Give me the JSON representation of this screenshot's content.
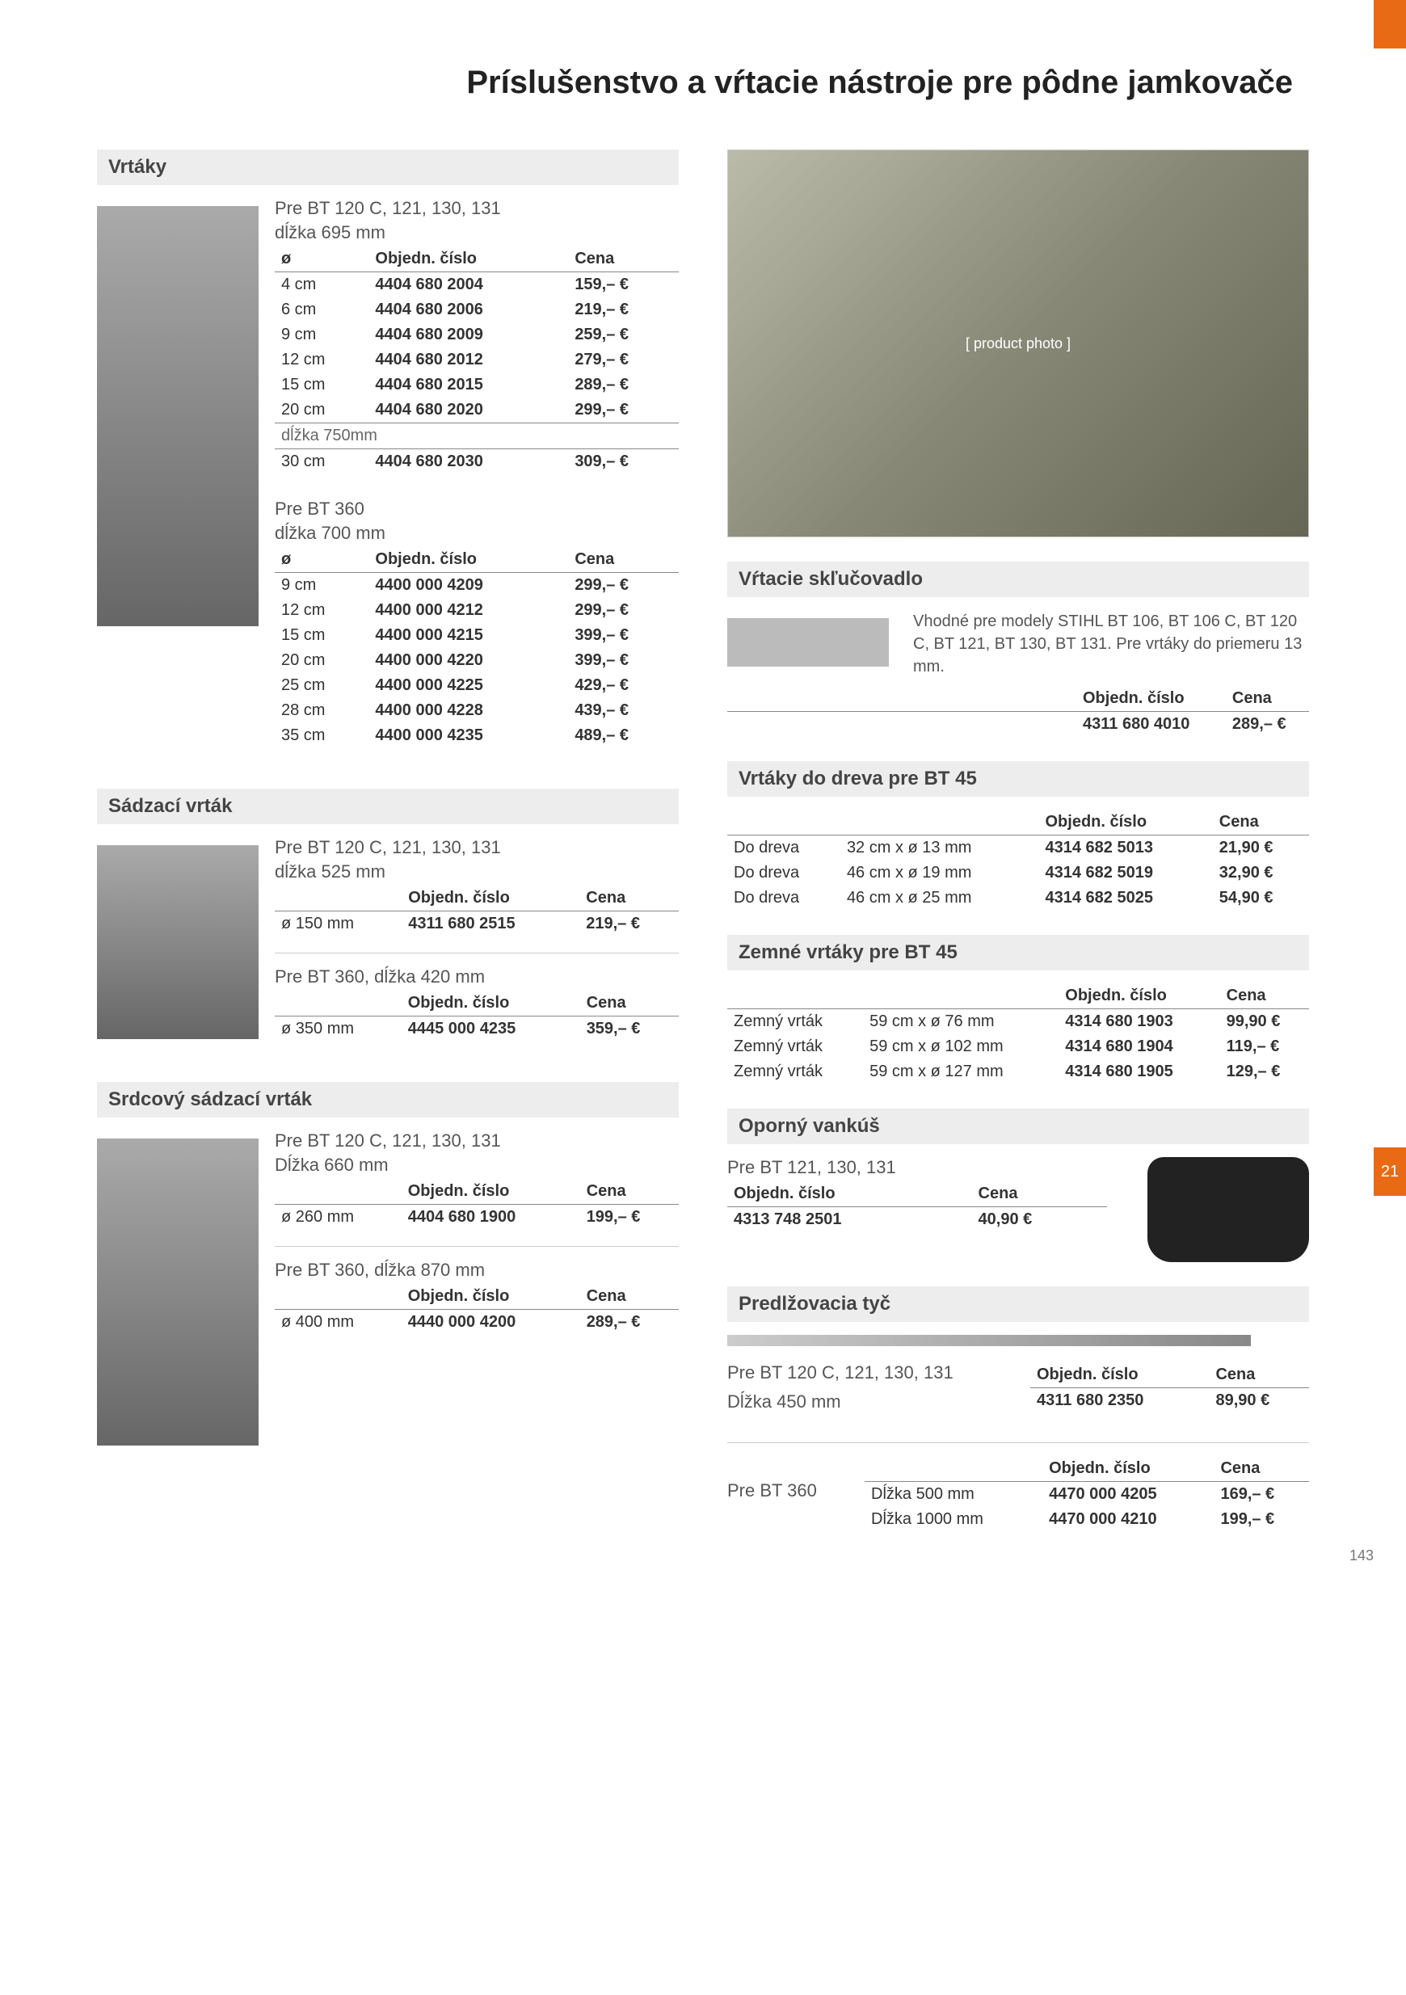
{
  "page": {
    "title": "Príslušenstvo a vŕtacie nástroje pre pôdne jamkovače",
    "side_badge": "21",
    "page_number": "143"
  },
  "labels": {
    "order_no": "Objedn. číslo",
    "price": "Cena",
    "diameter": "ø"
  },
  "vrtaky": {
    "title": "Vrtáky",
    "set1": {
      "header": "Pre BT 120 C, 121, 130, 131",
      "length": "dĺžka 695 mm",
      "rows": [
        {
          "d": "4 cm",
          "num": "4404 680 2004",
          "price": "159,– €"
        },
        {
          "d": "6 cm",
          "num": "4404 680 2006",
          "price": "219,– €"
        },
        {
          "d": "9 cm",
          "num": "4404 680 2009",
          "price": "259,– €"
        },
        {
          "d": "12 cm",
          "num": "4404 680 2012",
          "price": "279,– €"
        },
        {
          "d": "15 cm",
          "num": "4404 680 2015",
          "price": "289,– €"
        },
        {
          "d": "20 cm",
          "num": "4404 680 2020",
          "price": "299,– €"
        }
      ],
      "length2": "dĺžka 750mm",
      "rows2": [
        {
          "d": "30 cm",
          "num": "4404 680 2030",
          "price": "309,– €"
        }
      ]
    },
    "set2": {
      "header": "Pre BT 360",
      "length": "dĺžka 700 mm",
      "rows": [
        {
          "d": "9 cm",
          "num": "4400 000 4209",
          "price": "299,– €"
        },
        {
          "d": "12 cm",
          "num": "4400 000 4212",
          "price": "299,– €"
        },
        {
          "d": "15 cm",
          "num": "4400 000 4215",
          "price": "399,– €"
        },
        {
          "d": "20 cm",
          "num": "4400 000 4220",
          "price": "399,– €"
        },
        {
          "d": "25 cm",
          "num": "4400 000 4225",
          "price": "429,– €"
        },
        {
          "d": "28 cm",
          "num": "4400 000 4228",
          "price": "439,– €"
        },
        {
          "d": "35 cm",
          "num": "4400 000 4235",
          "price": "489,– €"
        }
      ]
    }
  },
  "sklucovadlo": {
    "title": "Vŕtacie skľučovadlo",
    "desc": "Vhodné pre modely STIHL BT 106, BT 106 C, BT 120 C, BT 121, BT 130, BT 131. Pre vrtáky do priemeru 13 mm.",
    "num": "4311 680 4010",
    "price": "289,– €"
  },
  "sadzaci": {
    "title": "Sádzací vrták",
    "set1": {
      "header": "Pre BT 120 C, 121, 130, 131",
      "length": "dĺžka 525 mm",
      "diameter": "ø 150 mm",
      "num": "4311 680 2515",
      "price": "219,– €"
    },
    "set2": {
      "header": "Pre BT 360, dĺžka 420 mm",
      "diameter": "ø 350 mm",
      "num": "4445 000 4235",
      "price": "359,– €"
    }
  },
  "bt45_wood": {
    "title": "Vrtáky do dreva pre BT 45",
    "rows": [
      {
        "name": "Do dreva",
        "size": "32 cm x ø 13 mm",
        "num": "4314 682 5013",
        "price": "21,90 €"
      },
      {
        "name": "Do dreva",
        "size": "46 cm x ø 19 mm",
        "num": "4314 682 5019",
        "price": "32,90 €"
      },
      {
        "name": "Do dreva",
        "size": "46 cm x ø 25 mm",
        "num": "4314 682 5025",
        "price": "54,90 €"
      }
    ]
  },
  "bt45_earth": {
    "title": "Zemné vrtáky pre  BT 45",
    "rows": [
      {
        "name": "Zemný vrták",
        "size": "59 cm x ø 76 mm",
        "num": "4314 680 1903",
        "price": "99,90 €"
      },
      {
        "name": "Zemný vrták",
        "size": "59 cm x ø 102 mm",
        "num": "4314 680 1904",
        "price": "119,– €"
      },
      {
        "name": "Zemný vrták",
        "size": "59 cm x ø 127 mm",
        "num": "4314 680 1905",
        "price": "129,– €"
      }
    ]
  },
  "srdcovy": {
    "title": "Srdcový sádzací vrták",
    "set1": {
      "header": "Pre BT 120 C, 121, 130, 131",
      "length": "Dĺžka 660 mm",
      "diameter": "ø 260 mm",
      "num": "4404 680 1900",
      "price": "199,– €"
    },
    "set2": {
      "header": "Pre BT 360, dĺžka 870 mm",
      "diameter": "ø 400 mm",
      "num": "4440 000 4200",
      "price": "289,– €"
    }
  },
  "cushion": {
    "title": "Oporný vankúš",
    "header": "Pre BT 121, 130, 131",
    "num": "4313 748 2501",
    "price": "40,90 €"
  },
  "rod": {
    "title": "Predlžovacia tyč",
    "set1": {
      "header": "Pre BT 120 C, 121, 130, 131",
      "length": "Dĺžka 450 mm",
      "num": "4311 680 2350",
      "price": "89,90 €"
    },
    "set2": {
      "header": "Pre BT 360",
      "rows": [
        {
          "length": "Dĺžka 500 mm",
          "num": "4470 000 4205",
          "price": "169,– €"
        },
        {
          "length": "Dĺžka 1000 mm",
          "num": "4470 000 4210",
          "price": "199,– €"
        }
      ]
    }
  },
  "styling": {
    "accent_color": "#e86a15",
    "header_bg": "#ededed",
    "text_color": "#333333",
    "muted_color": "#555555",
    "rule_color": "#888888",
    "title_fontsize": 40,
    "section_title_fontsize": 24,
    "body_fontsize": 20,
    "subhead_fontsize": 22
  }
}
